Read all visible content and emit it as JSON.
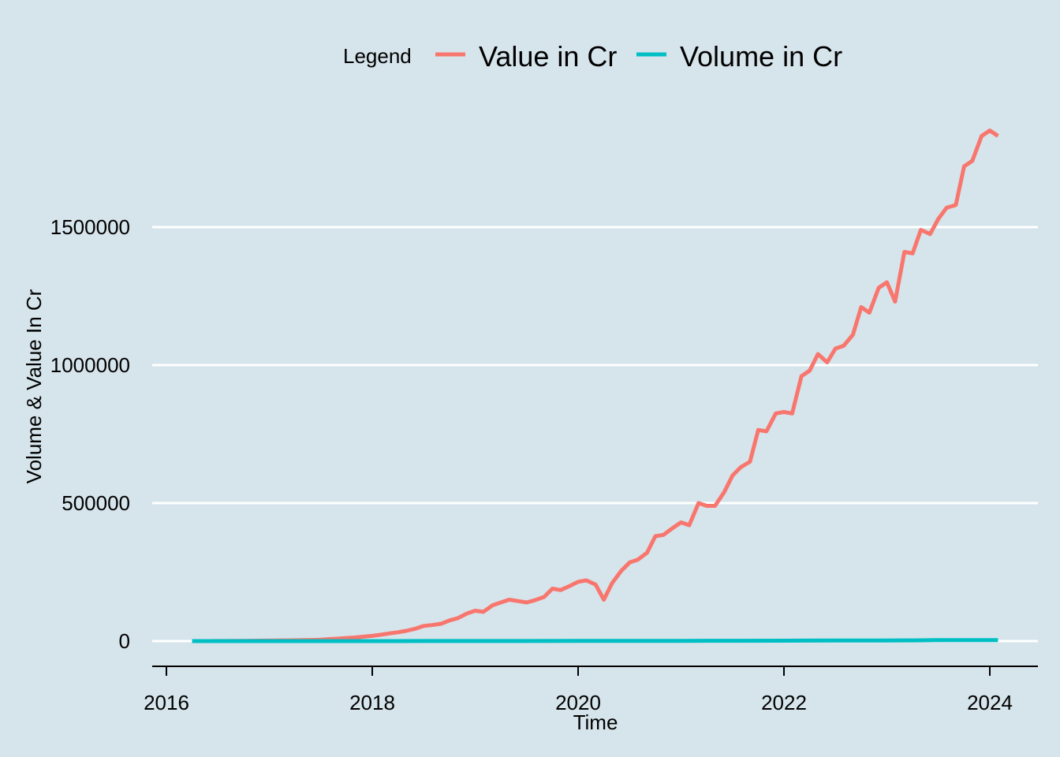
{
  "chart_data": {
    "type": "line",
    "title": "",
    "xlabel": "Time",
    "ylabel": "Volume & Value In Cr",
    "legend": {
      "title": "Legend",
      "placement": "top",
      "entries": [
        "Value in Cr",
        "Volume in Cr"
      ]
    },
    "colors": {
      "background": "#d6e4eb",
      "grid": "#ffffff",
      "axis": "#000000",
      "value": "#f8766d",
      "volume": "#00bfc4"
    },
    "xlim": [
      2016.0,
      2024.25
    ],
    "ylim": [
      -90000,
      2000000
    ],
    "x_ticks": [
      2016,
      2018,
      2020,
      2022,
      2024
    ],
    "x_tick_labels": [
      "2016",
      "2018",
      "2020",
      "2022",
      "2024"
    ],
    "y_ticks": [
      0,
      500000,
      1000000,
      1500000
    ],
    "y_tick_labels": [
      "0",
      "500000",
      "1000000",
      "1500000"
    ],
    "grid": {
      "horizontal": true,
      "vertical": false
    },
    "series": [
      {
        "name": "Value in Cr",
        "x": [
          2016.25,
          2016.33,
          2016.42,
          2016.5,
          2016.58,
          2016.67,
          2016.75,
          2016.83,
          2016.92,
          2017.0,
          2017.08,
          2017.17,
          2017.25,
          2017.33,
          2017.42,
          2017.5,
          2017.58,
          2017.67,
          2017.75,
          2017.83,
          2017.92,
          2018.0,
          2018.08,
          2018.17,
          2018.25,
          2018.33,
          2018.42,
          2018.5,
          2018.58,
          2018.67,
          2018.75,
          2018.83,
          2018.92,
          2019.0,
          2019.08,
          2019.17,
          2019.25,
          2019.33,
          2019.42,
          2019.5,
          2019.58,
          2019.67,
          2019.75,
          2019.83,
          2019.92,
          2020.0,
          2020.08,
          2020.17,
          2020.25,
          2020.33,
          2020.42,
          2020.5,
          2020.58,
          2020.67,
          2020.75,
          2020.83,
          2020.92,
          2021.0,
          2021.08,
          2021.17,
          2021.25,
          2021.33,
          2021.42,
          2021.5,
          2021.58,
          2021.67,
          2021.75,
          2021.83,
          2021.92,
          2022.0,
          2022.08,
          2022.17,
          2022.25,
          2022.33,
          2022.42,
          2022.5,
          2022.58,
          2022.67,
          2022.75,
          2022.83,
          2022.92,
          2023.0,
          2023.08,
          2023.17,
          2023.25,
          2023.33,
          2023.42,
          2023.5,
          2023.58,
          2023.67,
          2023.75,
          2023.83,
          2023.92,
          2024.0,
          2024.08
        ],
        "y": [
          0,
          0,
          100,
          200,
          300,
          500,
          700,
          1000,
          1300,
          1600,
          2000,
          2500,
          2900,
          3300,
          4000,
          5000,
          7000,
          9000,
          11000,
          13000,
          16000,
          19000,
          23000,
          28000,
          32000,
          37000,
          45000,
          55000,
          58000,
          63000,
          75000,
          83000,
          100000,
          110000,
          106000,
          130000,
          140000,
          150000,
          145000,
          140000,
          148000,
          160000,
          190000,
          185000,
          200000,
          215000,
          220000,
          205000,
          150000,
          210000,
          255000,
          285000,
          295000,
          320000,
          380000,
          385000,
          410000,
          430000,
          420000,
          500000,
          490000,
          490000,
          540000,
          600000,
          630000,
          650000,
          765000,
          760000,
          825000,
          830000,
          825000,
          960000,
          980000,
          1040000,
          1010000,
          1060000,
          1070000,
          1110000,
          1210000,
          1190000,
          1280000,
          1300000,
          1230000,
          1410000,
          1405000,
          1490000,
          1475000,
          1530000,
          1570000,
          1580000,
          1720000,
          1740000,
          1830000,
          1850000,
          1830000
        ]
      },
      {
        "name": "Volume in Cr",
        "x": [
          2016.25,
          2016.5,
          2017.0,
          2017.5,
          2018.0,
          2018.5,
          2019.0,
          2019.5,
          2020.0,
          2020.5,
          2021.0,
          2021.5,
          2022.0,
          2022.5,
          2023.0,
          2023.25,
          2023.33,
          2023.5,
          2024.0,
          2024.08
        ],
        "y": [
          0,
          0,
          10,
          30,
          90,
          180,
          290,
          380,
          450,
          600,
          900,
          1100,
          1500,
          1900,
          2400,
          2600,
          3000,
          3300,
          3700,
          3800
        ]
      }
    ]
  }
}
